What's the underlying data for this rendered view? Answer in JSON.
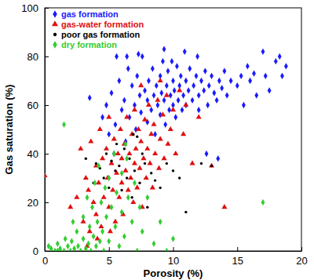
{
  "chart_data": {
    "type": "scatter",
    "x_label": "Porosity (%)",
    "y_label": "Gas saturation (%)",
    "xlim": [
      0,
      20
    ],
    "ylim": [
      0,
      100
    ],
    "xticks": [
      0,
      5,
      10,
      15,
      20
    ],
    "yticks": [
      0,
      20,
      40,
      60,
      80,
      100
    ],
    "legend": "top-left",
    "series": [
      {
        "name": "gas formation",
        "color": "#1a1aff",
        "marker": "diamond",
        "x": [
          4.5,
          4.8,
          5.0,
          5.2,
          5.5,
          5.8,
          6.0,
          6.2,
          6.3,
          6.5,
          6.6,
          6.8,
          7.0,
          7.1,
          7.2,
          7.4,
          7.5,
          7.6,
          7.8,
          8.0,
          8.0,
          8.1,
          8.3,
          8.4,
          8.5,
          8.6,
          8.7,
          8.8,
          9.0,
          9.0,
          9.1,
          9.2,
          9.3,
          9.4,
          9.5,
          9.6,
          9.7,
          9.8,
          10.0,
          10.0,
          10.1,
          10.2,
          10.3,
          10.4,
          10.5,
          10.6,
          10.7,
          10.8,
          11.0,
          11.0,
          11.2,
          11.3,
          11.5,
          11.6,
          11.8,
          12.0,
          12.0,
          12.2,
          12.4,
          12.5,
          12.7,
          12.8,
          13.0,
          13.2,
          13.4,
          13.5,
          13.6,
          13.8,
          14.0,
          14.2,
          14.5,
          15.0,
          15.3,
          15.5,
          15.8,
          16.0,
          16.3,
          16.5,
          17.0,
          17.2,
          17.5,
          18.0,
          18.3,
          18.5,
          18.8,
          5.6,
          6.4,
          7.3,
          5.4,
          9.9,
          3.5,
          9.3,
          11.9,
          12.6,
          10.9
        ],
        "values": [
          55,
          60,
          48,
          65,
          52,
          70,
          58,
          62,
          45,
          75,
          55,
          68,
          60,
          50,
          72,
          64,
          57,
          80,
          66,
          62,
          53,
          70,
          58,
          75,
          64,
          48,
          68,
          60,
          72,
          56,
          65,
          78,
          62,
          52,
          68,
          74,
          58,
          64,
          70,
          60,
          66,
          55,
          76,
          62,
          68,
          72,
          58,
          64,
          70,
          60,
          66,
          75,
          62,
          68,
          72,
          64,
          58,
          70,
          66,
          74,
          60,
          68,
          72,
          65,
          62,
          38,
          70,
          67,
          74,
          64,
          70,
          68,
          72,
          60,
          76,
          70,
          73,
          64,
          82,
          72,
          66,
          78,
          80,
          72,
          76,
          80,
          80,
          81,
          40,
          78,
          63,
          83,
          80,
          40,
          82
        ]
      },
      {
        "name": "gas-water formation",
        "color": "#e01010",
        "marker": "triangle",
        "x": [
          0,
          2.0,
          2.5,
          2.8,
          3.0,
          3.2,
          3.4,
          3.5,
          3.6,
          3.8,
          4.0,
          4.0,
          4.2,
          4.3,
          4.4,
          4.5,
          4.6,
          4.8,
          4.9,
          5.0,
          5.0,
          5.2,
          5.3,
          5.4,
          5.5,
          5.6,
          5.7,
          5.8,
          5.9,
          6.0,
          6.0,
          6.1,
          6.2,
          6.3,
          6.4,
          6.5,
          6.6,
          6.7,
          6.8,
          6.9,
          7.0,
          7.0,
          7.1,
          7.2,
          7.3,
          7.4,
          7.5,
          7.6,
          7.7,
          7.8,
          7.9,
          8.0,
          8.1,
          8.2,
          8.3,
          8.4,
          8.5,
          8.6,
          8.8,
          8.9,
          9.0,
          9.2,
          9.3,
          9.5,
          9.6,
          9.8,
          10.0,
          10.2,
          10.5,
          10.8,
          11.0,
          11.5,
          12.0,
          13.0,
          14.0,
          4.1,
          3.3,
          5.1,
          7.5,
          9.0
        ],
        "values": [
          31,
          18,
          22,
          42,
          12,
          30,
          25,
          8,
          45,
          20,
          35,
          15,
          28,
          50,
          10,
          38,
          22,
          42,
          30,
          18,
          55,
          36,
          25,
          46,
          12,
          32,
          40,
          22,
          50,
          28,
          38,
          15,
          44,
          33,
          55,
          25,
          40,
          30,
          48,
          20,
          36,
          58,
          42,
          26,
          50,
          34,
          45,
          18,
          38,
          54,
          30,
          42,
          60,
          36,
          48,
          26,
          52,
          40,
          62,
          34,
          46,
          56,
          38,
          64,
          44,
          50,
          58,
          40,
          66,
          48,
          60,
          36,
          55,
          35,
          18,
          5,
          2,
          8,
          68,
          70
        ]
      },
      {
        "name": "poor gas formation",
        "color": "#000000",
        "marker": "circle",
        "x": [
          3.2,
          3.8,
          4.0,
          4.3,
          4.6,
          4.8,
          5.0,
          5.2,
          5.5,
          5.6,
          5.8,
          6.0,
          6.2,
          6.4,
          6.6,
          6.8,
          7.0,
          7.2,
          7.4,
          7.6,
          7.8,
          8.0,
          8.3,
          8.6,
          9.0,
          9.5,
          10.0,
          10.5,
          11.0,
          12.2,
          13.0,
          6.9
        ],
        "values": [
          38,
          28,
          36,
          34,
          30,
          40,
          26,
          37,
          33,
          44,
          35,
          25,
          42,
          30,
          38,
          22,
          33,
          47,
          28,
          40,
          36,
          18,
          32,
          29,
          26,
          36,
          33,
          30,
          16,
          36,
          35,
          48
        ]
      },
      {
        "name": "dry formation",
        "color": "#33cc33",
        "marker": "diamond",
        "x": [
          0.5,
          0.8,
          1.0,
          1.2,
          1.5,
          1.6,
          1.8,
          1.5,
          2.0,
          2.1,
          2.3,
          2.5,
          2.6,
          2.8,
          3.0,
          3.0,
          3.2,
          3.3,
          3.4,
          3.5,
          3.6,
          3.7,
          3.8,
          3.9,
          4.0,
          4.1,
          4.2,
          4.3,
          4.4,
          4.5,
          4.6,
          4.7,
          4.8,
          5.0,
          5.0,
          5.2,
          5.4,
          5.5,
          5.6,
          5.8,
          6.0,
          6.0,
          6.2,
          6.4,
          6.5,
          6.8,
          7.0,
          7.2,
          7.4,
          7.6,
          8.0,
          8.5,
          9.0,
          9.5,
          10.0,
          17.0,
          2.2,
          1.0,
          0.3,
          6.3
        ],
        "values": [
          1,
          0,
          3,
          1,
          0,
          5,
          2,
          52,
          0,
          4,
          1,
          8,
          2,
          0,
          5,
          14,
          1,
          22,
          3,
          10,
          0,
          18,
          6,
          28,
          2,
          12,
          35,
          4,
          20,
          8,
          0,
          26,
          14,
          30,
          4,
          18,
          40,
          10,
          24,
          2,
          32,
          16,
          6,
          38,
          22,
          12,
          28,
          0,
          18,
          8,
          22,
          3,
          12,
          0,
          5,
          20,
          12,
          0,
          2,
          44
        ]
      }
    ]
  }
}
